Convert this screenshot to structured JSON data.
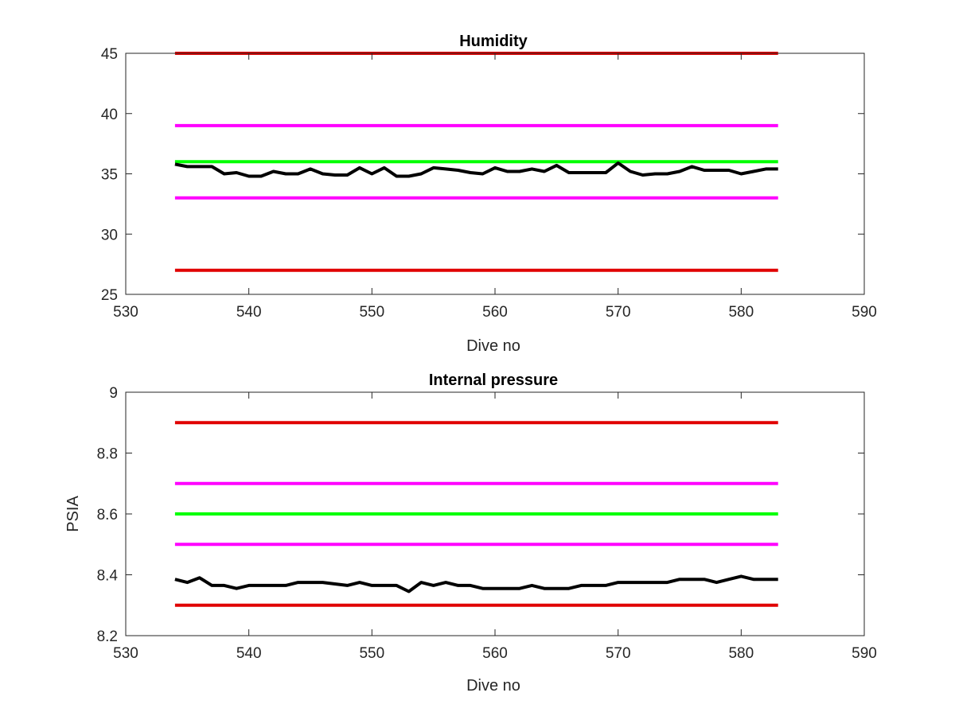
{
  "chart_data": [
    {
      "type": "line",
      "title": "Humidity",
      "xlabel": "Dive no",
      "ylabel": "",
      "xlim": [
        530,
        590
      ],
      "ylim": [
        25,
        45
      ],
      "xticks": [
        530,
        540,
        550,
        560,
        570,
        580,
        590
      ],
      "yticks": [
        25,
        30,
        35,
        40,
        45
      ],
      "grid": false,
      "series": [
        {
          "color": "#e00000",
          "x": [
            534,
            583
          ],
          "y": [
            45,
            45
          ]
        },
        {
          "color": "#ff00ff",
          "x": [
            534,
            583
          ],
          "y": [
            39,
            39
          ]
        },
        {
          "color": "#00ff00",
          "x": [
            534,
            583
          ],
          "y": [
            36,
            36
          ]
        },
        {
          "color": "#ff00ff",
          "x": [
            534,
            583
          ],
          "y": [
            33,
            33
          ]
        },
        {
          "color": "#e00000",
          "x": [
            534,
            583
          ],
          "y": [
            27,
            27
          ]
        },
        {
          "color": "#000000",
          "x": [
            534,
            535,
            536,
            537,
            538,
            539,
            540,
            541,
            542,
            543,
            544,
            545,
            546,
            547,
            548,
            549,
            550,
            551,
            552,
            553,
            554,
            555,
            556,
            557,
            558,
            559,
            560,
            561,
            562,
            563,
            564,
            565,
            566,
            567,
            568,
            569,
            570,
            571,
            572,
            573,
            574,
            575,
            576,
            577,
            578,
            579,
            580,
            581,
            582,
            583
          ],
          "y": [
            35.8,
            35.6,
            35.6,
            35.6,
            35.0,
            35.1,
            34.8,
            34.8,
            35.2,
            35.0,
            35.0,
            35.4,
            35.0,
            34.9,
            34.9,
            35.5,
            35.0,
            35.5,
            34.8,
            34.8,
            35.0,
            35.5,
            35.4,
            35.3,
            35.1,
            35.0,
            35.5,
            35.2,
            35.2,
            35.4,
            35.2,
            35.7,
            35.1,
            35.1,
            35.1,
            35.1,
            35.9,
            35.2,
            34.9,
            35.0,
            35.0,
            35.2,
            35.6,
            35.3,
            35.3,
            35.3,
            35.0,
            35.2,
            35.4,
            35.4
          ]
        }
      ]
    },
    {
      "type": "line",
      "title": "Internal pressure",
      "xlabel": "Dive no",
      "ylabel": "PSIA",
      "xlim": [
        530,
        590
      ],
      "ylim": [
        8.2,
        9
      ],
      "xticks": [
        530,
        540,
        550,
        560,
        570,
        580,
        590
      ],
      "yticks": [
        "8.2",
        "8.4",
        "8.6",
        "8.8",
        "9"
      ],
      "grid": false,
      "series": [
        {
          "color": "#e00000",
          "x": [
            534,
            583
          ],
          "y": [
            8.9,
            8.9
          ]
        },
        {
          "color": "#ff00ff",
          "x": [
            534,
            583
          ],
          "y": [
            8.7,
            8.7
          ]
        },
        {
          "color": "#00ff00",
          "x": [
            534,
            583
          ],
          "y": [
            8.6,
            8.6
          ]
        },
        {
          "color": "#ff00ff",
          "x": [
            534,
            583
          ],
          "y": [
            8.5,
            8.5
          ]
        },
        {
          "color": "#e00000",
          "x": [
            534,
            583
          ],
          "y": [
            8.3,
            8.3
          ]
        },
        {
          "color": "#000000",
          "x": [
            534,
            535,
            536,
            537,
            538,
            539,
            540,
            541,
            542,
            543,
            544,
            545,
            546,
            547,
            548,
            549,
            550,
            551,
            552,
            553,
            554,
            555,
            556,
            557,
            558,
            559,
            560,
            561,
            562,
            563,
            564,
            565,
            566,
            567,
            568,
            569,
            570,
            571,
            572,
            573,
            574,
            575,
            576,
            577,
            578,
            579,
            580,
            581,
            582,
            583
          ],
          "y": [
            8.385,
            8.375,
            8.39,
            8.365,
            8.365,
            8.355,
            8.365,
            8.365,
            8.365,
            8.365,
            8.375,
            8.375,
            8.375,
            8.37,
            8.365,
            8.375,
            8.365,
            8.365,
            8.365,
            8.345,
            8.375,
            8.365,
            8.375,
            8.365,
            8.365,
            8.355,
            8.355,
            8.355,
            8.355,
            8.365,
            8.355,
            8.355,
            8.355,
            8.365,
            8.365,
            8.365,
            8.375,
            8.375,
            8.375,
            8.375,
            8.375,
            8.385,
            8.385,
            8.385,
            8.375,
            8.385,
            8.395,
            8.385,
            8.385,
            8.385
          ]
        }
      ]
    }
  ]
}
